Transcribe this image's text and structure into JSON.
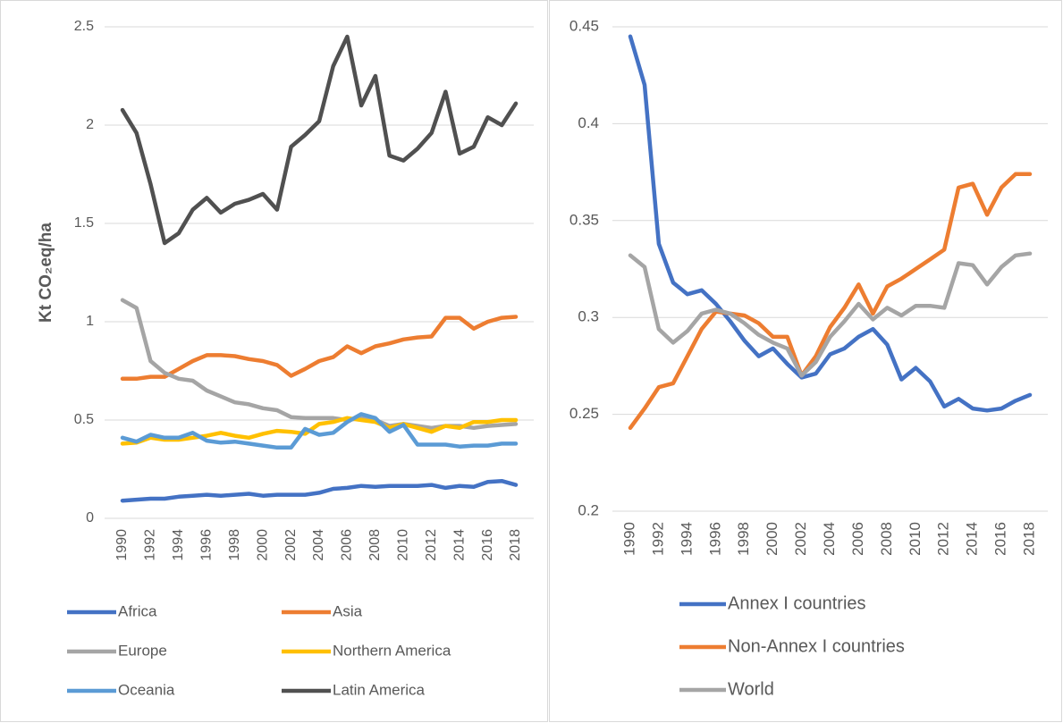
{
  "chart_data": [
    {
      "type": "line",
      "ylabel": "Kt CO₂eq/ha",
      "categories": [
        "1990",
        null,
        "1992",
        null,
        "1994",
        null,
        "1996",
        null,
        "1998",
        null,
        "2000",
        null,
        "2002",
        null,
        "2004",
        null,
        "2006",
        null,
        "2008",
        null,
        "2010",
        null,
        "2012",
        null,
        "2014",
        null,
        "2016",
        null,
        "2018"
      ],
      "ylim": [
        0,
        2.5
      ],
      "yticks": [
        0,
        0.5,
        1,
        1.5,
        2,
        2.5
      ],
      "grid": true,
      "legend": "bottom",
      "series": [
        {
          "name": "Africa",
          "color": "#4472c4",
          "values": [
            0.09,
            0.095,
            0.1,
            0.1,
            0.11,
            0.115,
            0.12,
            0.115,
            0.12,
            0.125,
            0.115,
            0.12,
            0.12,
            0.12,
            0.13,
            0.15,
            0.155,
            0.165,
            0.16,
            0.165,
            0.165,
            0.165,
            0.17,
            0.155,
            0.165,
            0.16,
            0.185,
            0.19,
            0.17
          ]
        },
        {
          "name": "Asia",
          "color": "#ed7d31",
          "values": [
            0.71,
            0.71,
            0.72,
            0.72,
            0.76,
            0.8,
            0.83,
            0.83,
            0.825,
            0.81,
            0.8,
            0.78,
            0.725,
            0.76,
            0.8,
            0.82,
            0.875,
            0.84,
            0.875,
            0.89,
            0.91,
            0.92,
            0.925,
            1.02,
            1.02,
            0.965,
            1.0,
            1.02,
            1.025
          ]
        },
        {
          "name": "Europe",
          "color": "#a5a5a5",
          "values": [
            1.11,
            1.07,
            0.8,
            0.74,
            0.71,
            0.7,
            0.65,
            0.62,
            0.59,
            0.58,
            0.56,
            0.55,
            0.515,
            0.51,
            0.51,
            0.51,
            0.5,
            0.51,
            0.5,
            0.47,
            0.48,
            0.47,
            0.46,
            0.47,
            0.47,
            0.46,
            0.47,
            0.475,
            0.48
          ]
        },
        {
          "name": "Northern America",
          "color": "#ffc000",
          "values": [
            0.38,
            0.385,
            0.41,
            0.4,
            0.4,
            0.41,
            0.42,
            0.435,
            0.42,
            0.41,
            0.43,
            0.445,
            0.44,
            0.43,
            0.48,
            0.49,
            0.51,
            0.5,
            0.49,
            0.46,
            0.48,
            0.46,
            0.44,
            0.47,
            0.46,
            0.49,
            0.49,
            0.5,
            0.5
          ]
        },
        {
          "name": "Oceania",
          "color": "#5b9bd5",
          "values": [
            0.41,
            0.39,
            0.425,
            0.41,
            0.41,
            0.435,
            0.395,
            0.385,
            0.39,
            0.38,
            0.37,
            0.36,
            0.36,
            0.455,
            0.425,
            0.435,
            0.49,
            0.53,
            0.51,
            0.44,
            0.475,
            0.375,
            0.375,
            0.375,
            0.365,
            0.37,
            0.37,
            0.38,
            0.38
          ]
        },
        {
          "name": "Latin America",
          "color": "#505050",
          "values": [
            2.077,
            1.96,
            1.7,
            1.4,
            1.45,
            1.57,
            1.63,
            1.555,
            1.6,
            1.62,
            1.65,
            1.57,
            1.89,
            1.95,
            2.02,
            2.3,
            2.45,
            2.1,
            2.25,
            1.845,
            1.82,
            1.88,
            1.96,
            2.17,
            1.855,
            1.89,
            2.04,
            2.0,
            2.11
          ]
        }
      ]
    },
    {
      "type": "line",
      "categories": [
        "1990",
        null,
        "1992",
        null,
        "1994",
        null,
        "1996",
        null,
        "1998",
        null,
        "2000",
        null,
        "2002",
        null,
        "2004",
        null,
        "2006",
        null,
        "2008",
        null,
        "2010",
        null,
        "2012",
        null,
        "2014",
        null,
        "2016",
        null,
        "2018"
      ],
      "ylim": [
        0.2,
        0.45
      ],
      "yticks": [
        0.2,
        0.25,
        0.3,
        0.35,
        0.4,
        0.45
      ],
      "grid": true,
      "legend": "bottom",
      "series": [
        {
          "name": "Annex I countries",
          "color": "#4472c4",
          "values": [
            0.445,
            0.42,
            0.338,
            0.318,
            0.312,
            0.314,
            0.307,
            0.298,
            0.288,
            0.28,
            0.284,
            0.276,
            0.269,
            0.271,
            0.281,
            0.284,
            0.29,
            0.294,
            0.286,
            0.268,
            0.274,
            0.267,
            0.254,
            0.258,
            0.253,
            0.252,
            0.253,
            0.257,
            0.26
          ]
        },
        {
          "name": "Non-Annex I countries",
          "color": "#ed7d31",
          "values": [
            0.243,
            0.253,
            0.264,
            0.266,
            0.28,
            0.294,
            0.303,
            0.302,
            0.301,
            0.297,
            0.29,
            0.29,
            0.27,
            0.28,
            0.295,
            0.305,
            0.317,
            0.302,
            0.316,
            0.32,
            0.325,
            0.33,
            0.335,
            0.367,
            0.369,
            0.353,
            0.367,
            0.374,
            0.374
          ]
        },
        {
          "name": "World",
          "color": "#a5a5a5",
          "values": [
            0.332,
            0.326,
            0.294,
            0.287,
            0.293,
            0.302,
            0.304,
            0.302,
            0.297,
            0.291,
            0.287,
            0.284,
            0.27,
            0.277,
            0.29,
            0.298,
            0.307,
            0.299,
            0.305,
            0.301,
            0.306,
            0.306,
            0.305,
            0.328,
            0.327,
            0.317,
            0.326,
            0.332,
            0.333
          ]
        }
      ]
    }
  ]
}
